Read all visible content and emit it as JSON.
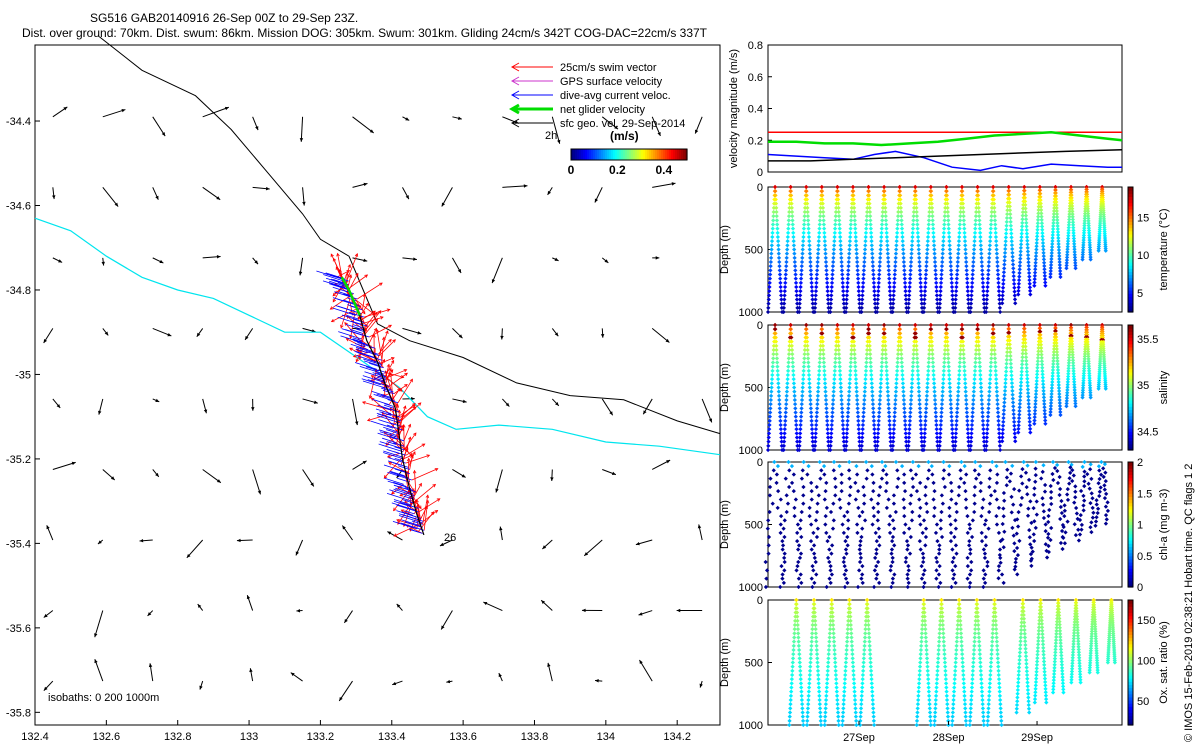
{
  "header": {
    "line1": "SG516 GAB20140916 26-Sep 00Z to 29-Sep 23Z.",
    "line2": "Dist. over ground: 70km. Dist. swum: 86km. Mission DOG: 305km. Swum: 301km. Gliding 24cm/s 342T COG-DAC=22cm/s 337T"
  },
  "side_note": "© IMOS 15-Feb-2019 02:38:21 Hobart time. QC flags 1  2",
  "colors": {
    "swim_vector": "#ff0000",
    "gps_velocity": "#cc33cc",
    "dive_avg_current": "#0000ff",
    "net_velocity": "#00dd00",
    "geostrophic": "#000000",
    "isobath_0": "#00e5ee",
    "isobath_200": "#000000"
  },
  "chart_data": [
    {
      "type": "scatter",
      "name": "map",
      "xlim": [
        132.4,
        134.32
      ],
      "ylim": [
        -35.83,
        -34.22
      ],
      "x_ticks": [
        "132.4",
        "132.6",
        "132.8",
        "133",
        "133.2",
        "133.4",
        "133.6",
        "133.8",
        "134",
        "134.2"
      ],
      "y_ticks": [
        "-34.4",
        "-34.6",
        "-34.8",
        "-35",
        "-35.2",
        "-35.4",
        "-35.6",
        "-35.8"
      ],
      "legend": [
        {
          "label": "25cm/s swim vector",
          "color": "#ff0000"
        },
        {
          "label": "GPS surface velocity",
          "color": "#cc33cc"
        },
        {
          "label": "dive-avg current veloc.",
          "color": "#0000ff"
        },
        {
          "label": "net glider velocity",
          "color": "#00dd00"
        },
        {
          "label": "sfc geo. vel. 29-Sep-2014",
          "color": "#000000"
        }
      ],
      "scale_label": "2h",
      "colorbar": {
        "title": "(m/s)",
        "ticks": [
          "0",
          "0.2",
          "0.4"
        ],
        "range": [
          0,
          0.5
        ]
      },
      "isobath_label": "isobaths: 0   200  1000m",
      "track_label": "26",
      "isobath_0": [
        [
          132.4,
          -34.63
        ],
        [
          132.5,
          -34.66
        ],
        [
          132.6,
          -34.72
        ],
        [
          132.7,
          -34.77
        ],
        [
          132.8,
          -34.8
        ],
        [
          132.9,
          -34.82
        ],
        [
          133.0,
          -34.86
        ],
        [
          133.1,
          -34.9
        ],
        [
          133.2,
          -34.9
        ],
        [
          133.32,
          -34.97
        ],
        [
          133.42,
          -35.03
        ],
        [
          133.5,
          -35.1
        ],
        [
          133.58,
          -35.13
        ],
        [
          133.7,
          -35.12
        ],
        [
          133.85,
          -35.13
        ],
        [
          134.0,
          -35.16
        ],
        [
          134.15,
          -35.17
        ],
        [
          134.32,
          -35.19
        ]
      ],
      "isobath_200": [
        [
          132.58,
          -34.2
        ],
        [
          132.7,
          -34.28
        ],
        [
          132.85,
          -34.34
        ],
        [
          132.95,
          -34.42
        ],
        [
          133.05,
          -34.52
        ],
        [
          133.15,
          -34.62
        ],
        [
          133.2,
          -34.68
        ],
        [
          133.28,
          -34.72
        ],
        [
          133.32,
          -34.8
        ],
        [
          133.36,
          -34.88
        ],
        [
          133.45,
          -34.92
        ],
        [
          133.6,
          -34.96
        ],
        [
          133.75,
          -35.02
        ],
        [
          133.9,
          -35.05
        ],
        [
          134.05,
          -35.06
        ],
        [
          134.2,
          -35.11
        ],
        [
          134.32,
          -35.14
        ]
      ],
      "track": [
        [
          133.26,
          -34.77
        ],
        [
          133.28,
          -34.8
        ],
        [
          133.31,
          -34.86
        ],
        [
          133.33,
          -34.92
        ],
        [
          133.36,
          -34.97
        ],
        [
          133.38,
          -35.02
        ],
        [
          133.41,
          -35.08
        ],
        [
          133.42,
          -35.14
        ],
        [
          133.43,
          -35.2
        ],
        [
          133.45,
          -35.27
        ],
        [
          133.47,
          -35.33
        ],
        [
          133.49,
          -35.38
        ]
      ]
    },
    {
      "type": "line",
      "name": "velocity",
      "ylabel": "velocity magnitude (m/s)",
      "ylim": [
        0,
        0.8
      ],
      "y_ticks": [
        "0",
        "0.2",
        "0.4",
        "0.6",
        "0.8"
      ],
      "x_ticks": [],
      "series": [
        {
          "color": "#ff0000",
          "x": [
            0,
            1
          ],
          "y": [
            0.25,
            0.25
          ]
        },
        {
          "color": "#00dd00",
          "x": [
            0,
            0.08,
            0.16,
            0.24,
            0.32,
            0.4,
            0.48,
            0.56,
            0.64,
            0.72,
            0.8,
            0.88,
            0.96,
            1
          ],
          "y": [
            0.19,
            0.19,
            0.18,
            0.18,
            0.17,
            0.18,
            0.19,
            0.21,
            0.23,
            0.24,
            0.25,
            0.23,
            0.21,
            0.2
          ]
        },
        {
          "color": "#0000ff",
          "x": [
            0,
            0.08,
            0.16,
            0.24,
            0.3,
            0.36,
            0.44,
            0.52,
            0.6,
            0.66,
            0.72,
            0.8,
            0.88,
            0.96,
            1
          ],
          "y": [
            0.11,
            0.1,
            0.09,
            0.08,
            0.11,
            0.13,
            0.09,
            0.03,
            0.01,
            0.04,
            0.02,
            0.05,
            0.04,
            0.03,
            0.03
          ]
        },
        {
          "color": "#000000",
          "x": [
            0,
            0.12,
            0.24,
            0.36,
            0.48,
            0.6,
            0.72,
            0.84,
            1
          ],
          "y": [
            0.07,
            0.07,
            0.08,
            0.09,
            0.1,
            0.11,
            0.12,
            0.13,
            0.14
          ]
        }
      ]
    },
    {
      "type": "scatter",
      "name": "temperature",
      "ylabel": "Depth (m)",
      "ylim": [
        1000,
        0
      ],
      "y_ticks": [
        "0",
        "500",
        "1000"
      ],
      "colorbar": {
        "label": "temperature (°C)",
        "range": [
          2.5,
          19
        ],
        "ticks": [
          "5",
          "10",
          "15"
        ]
      },
      "profiles": 22,
      "surface_value": 17.5,
      "deep_value": 3
    },
    {
      "type": "scatter",
      "name": "salinity",
      "ylabel": "Depth (m)",
      "ylim": [
        1000,
        0
      ],
      "y_ticks": [
        "0",
        "500",
        "1000"
      ],
      "colorbar": {
        "label": "salinity",
        "range": [
          34.3,
          35.65
        ],
        "ticks": [
          "34.5",
          "35",
          "35.5"
        ]
      },
      "profiles": 22,
      "surface_value": 35.55,
      "deep_value": 34.4
    },
    {
      "type": "scatter",
      "name": "chlorophyll",
      "ylabel": "Depth (m)",
      "ylim": [
        1000,
        0
      ],
      "y_ticks": [
        "0",
        "500",
        "1000"
      ],
      "colorbar": {
        "label": "chl-a (mg m-3)",
        "range": [
          0,
          2
        ],
        "ticks": [
          "0",
          "0.5",
          "1",
          "1.5",
          "2"
        ]
      },
      "profiles": 22,
      "surface_value": 0.5,
      "deep_value": 0.02
    },
    {
      "type": "scatter",
      "name": "oxygen",
      "ylabel": "Depth (m)",
      "ylim": [
        1000,
        0
      ],
      "y_ticks": [
        "0",
        "500",
        "1000"
      ],
      "colorbar": {
        "label": "Ox. sat. ratio (%)",
        "range": [
          20,
          175
        ],
        "ticks": [
          "50",
          "100",
          "150"
        ]
      },
      "x_ticks": [
        "27Sep",
        "28Sep",
        "29Sep"
      ],
      "profile_groups": [
        [
          0.08,
          0.13,
          0.18,
          0.23,
          0.28
        ],
        [
          0.44,
          0.49,
          0.54,
          0.59,
          0.64
        ],
        [
          0.72,
          0.77,
          0.82,
          0.87,
          0.92,
          0.97
        ]
      ],
      "surface_value": 120,
      "deep_value": 70
    }
  ]
}
